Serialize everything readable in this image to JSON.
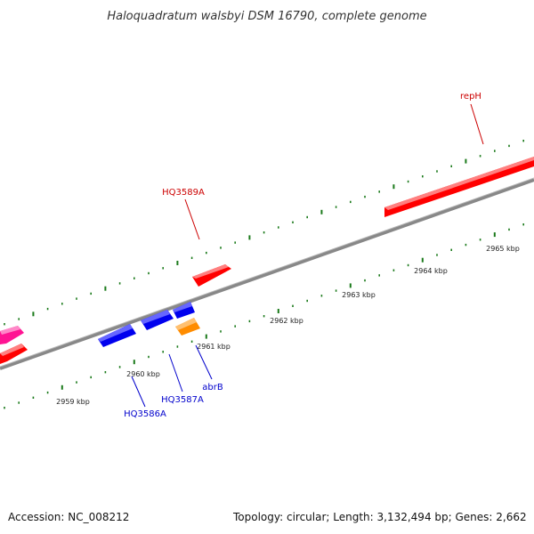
{
  "title": "Haloquadratum walsbyi DSM 16790, complete genome",
  "footer": {
    "accession": "Accession: NC_008212",
    "topology": "Topology: circular; Length: 3,132,494 bp; Genes: 2,662"
  },
  "colors": {
    "forward_gene": "#ff0000",
    "reverse_gene": "#0000ee",
    "orange_gene": "#ff8c00",
    "pink_gene": "#ff1493",
    "tick": "#1a7a1a",
    "backbone": "#888888"
  },
  "scale_labels": [
    "2959 kbp",
    "2960 kbp",
    "2961 kbp",
    "2962 kbp",
    "2963 kbp",
    "2964 kbp",
    "2965 kbp"
  ],
  "gene_labels": [
    {
      "text": "repH",
      "strand": "forward"
    },
    {
      "text": "HQ3589A",
      "strand": "forward"
    },
    {
      "text": "abrB",
      "strand": "reverse"
    },
    {
      "text": "HQ3587A",
      "strand": "reverse"
    },
    {
      "text": "HQ3586A",
      "strand": "reverse"
    }
  ]
}
